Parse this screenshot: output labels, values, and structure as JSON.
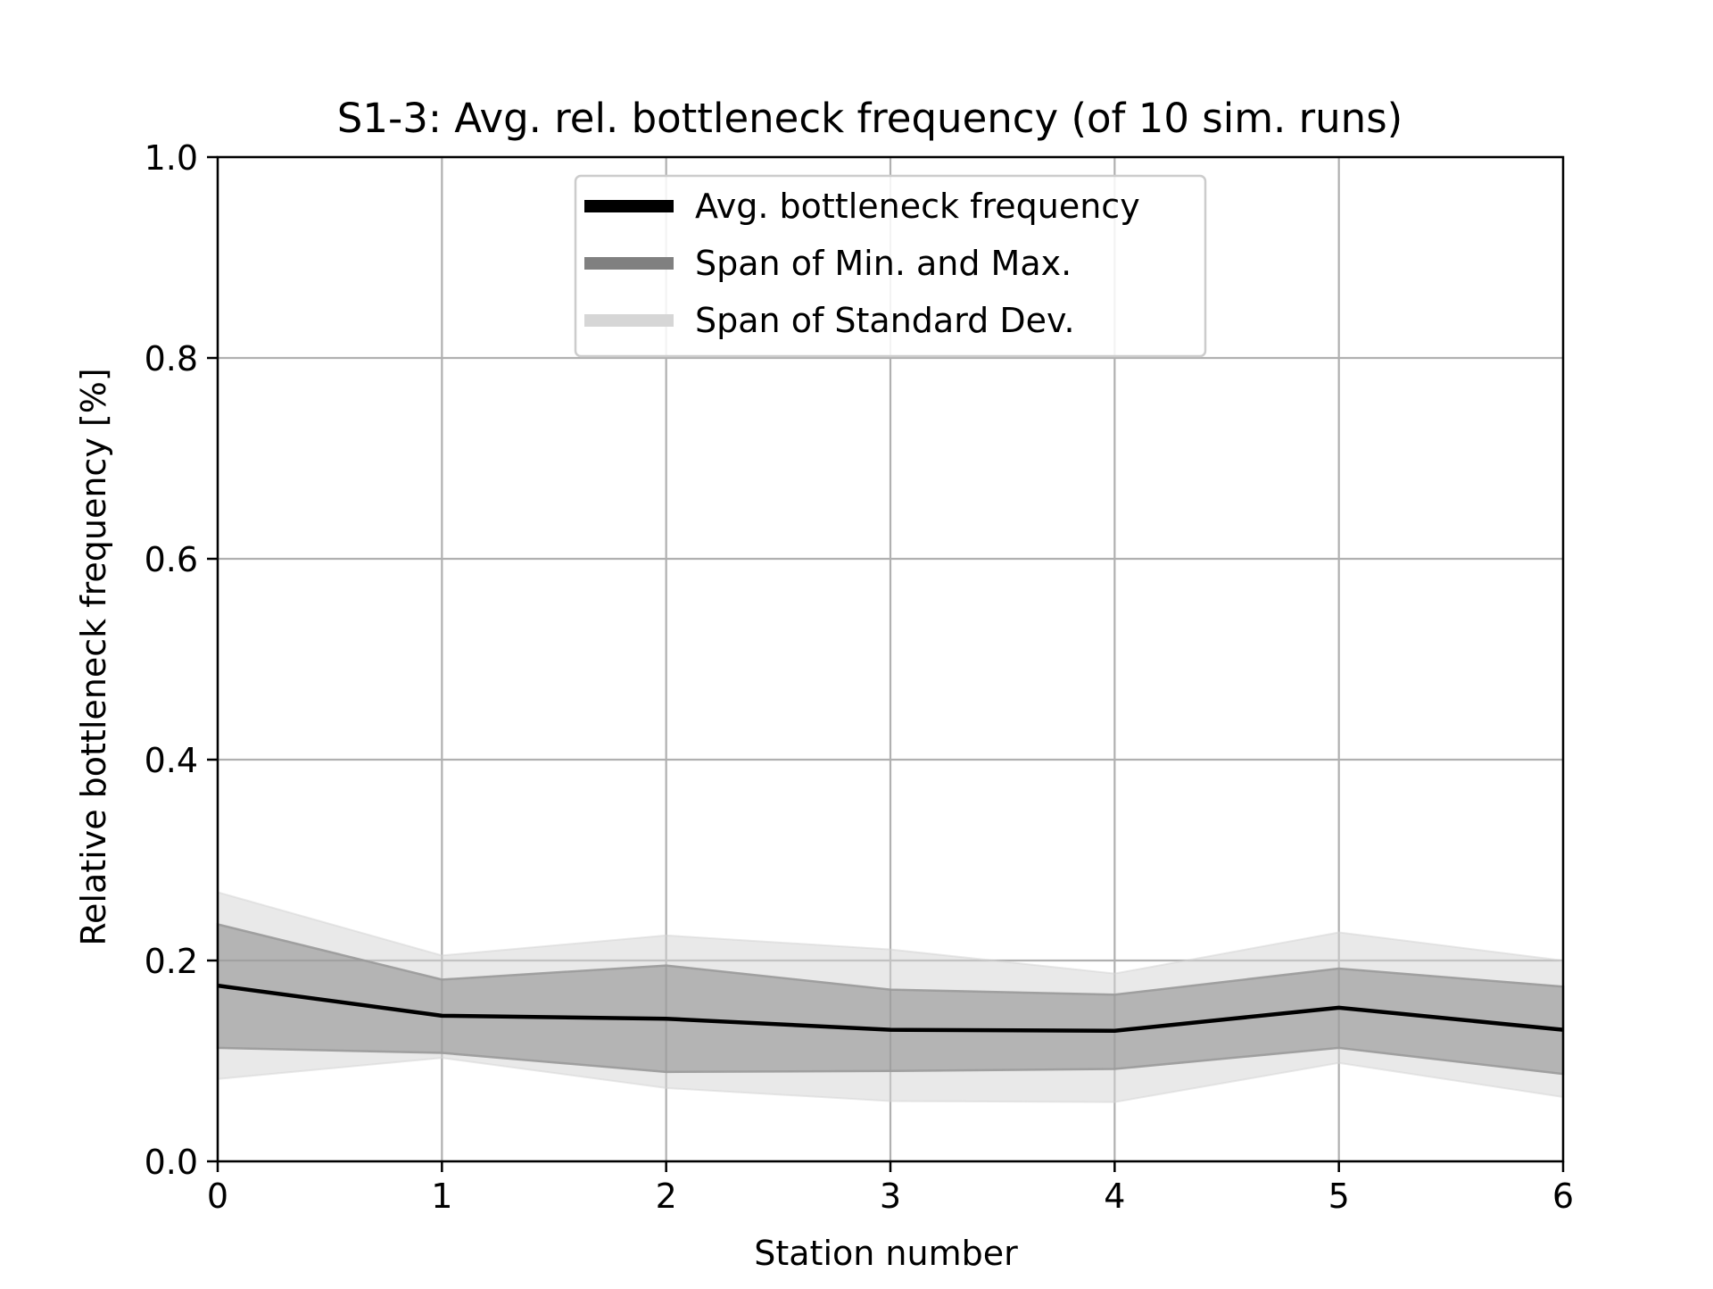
{
  "chart_data": {
    "type": "line",
    "title": "S1-3: Avg. rel. bottleneck frequency (of 10 sim. runs)",
    "xlabel": "Station number",
    "ylabel": "Relative bottleneck frequency [%]",
    "x": [
      0,
      1,
      2,
      3,
      4,
      5,
      6
    ],
    "xlim": [
      0,
      6
    ],
    "ylim": [
      0.0,
      1.0
    ],
    "xticks": [
      "0",
      "1",
      "2",
      "3",
      "4",
      "5",
      "6"
    ],
    "yticks": [
      "0.0",
      "0.2",
      "0.4",
      "0.6",
      "0.8",
      "1.0"
    ],
    "grid": true,
    "legend_position": "upper center",
    "series": [
      {
        "name": "Avg. bottleneck frequency",
        "kind": "line",
        "color": "#000000",
        "values": [
          0.175,
          0.145,
          0.142,
          0.131,
          0.13,
          0.153,
          0.131
        ]
      },
      {
        "name": "Span of Min. and Max.",
        "kind": "band",
        "color": "#808080",
        "lower": [
          0.113,
          0.108,
          0.089,
          0.09,
          0.092,
          0.113,
          0.087
        ],
        "upper": [
          0.236,
          0.181,
          0.195,
          0.171,
          0.166,
          0.192,
          0.174
        ]
      },
      {
        "name": "Span of Standard Dev.",
        "kind": "band",
        "color": "#d3d3d3",
        "lower": [
          0.082,
          0.103,
          0.073,
          0.06,
          0.059,
          0.098,
          0.064
        ],
        "upper": [
          0.268,
          0.205,
          0.225,
          0.211,
          0.187,
          0.228,
          0.2
        ]
      }
    ]
  }
}
